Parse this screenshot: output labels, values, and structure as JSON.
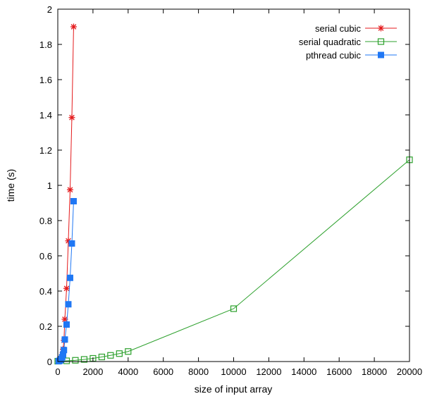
{
  "chart_data": {
    "type": "line",
    "title": "",
    "xlabel": "size of input array",
    "ylabel": "time (s)",
    "xlim": [
      0,
      20000
    ],
    "ylim": [
      0,
      2
    ],
    "xticks": [
      0,
      2000,
      4000,
      6000,
      8000,
      10000,
      12000,
      14000,
      16000,
      18000,
      20000
    ],
    "yticks": [
      0,
      0.2,
      0.4,
      0.6,
      0.8,
      1,
      1.2,
      1.4,
      1.6,
      1.8,
      2
    ],
    "xtick_labels": [
      "0",
      "2000",
      "4000",
      "6000",
      "8000",
      "10000",
      "12000",
      "14000",
      "16000",
      "18000",
      "20000"
    ],
    "ytick_labels": [
      "0",
      "0.2",
      "0.4",
      "0.6",
      "0.8",
      "1",
      "1.2",
      "1.4",
      "1.6",
      "1.8",
      "2"
    ],
    "grid": false,
    "legend_position": "top-right",
    "series": [
      {
        "name": "serial cubic",
        "color": "#e41a1c",
        "marker": "star",
        "x": [
          50,
          100,
          150,
          200,
          250,
          300,
          350,
          400,
          500,
          600,
          700,
          800,
          900
        ],
        "y": [
          0.002,
          0.005,
          0.01,
          0.02,
          0.04,
          0.07,
          0.12,
          0.24,
          0.415,
          0.685,
          0.975,
          1.385,
          1.9
        ]
      },
      {
        "name": "serial quadratic",
        "color": "#2ca02c",
        "marker": "open-square",
        "x": [
          0,
          500,
          1000,
          1500,
          2000,
          2500,
          3000,
          3500,
          4000,
          10000,
          20000
        ],
        "y": [
          0.002,
          0.004,
          0.007,
          0.012,
          0.018,
          0.026,
          0.035,
          0.045,
          0.057,
          0.3,
          1.145
        ]
      },
      {
        "name": "pthread cubic",
        "color": "#1f77f4",
        "marker": "filled-square",
        "x": [
          50,
          100,
          150,
          200,
          250,
          300,
          350,
          400,
          500,
          600,
          700,
          800,
          900
        ],
        "y": [
          0.002,
          0.004,
          0.008,
          0.014,
          0.025,
          0.04,
          0.065,
          0.125,
          0.21,
          0.325,
          0.475,
          0.67,
          0.91
        ]
      }
    ]
  }
}
